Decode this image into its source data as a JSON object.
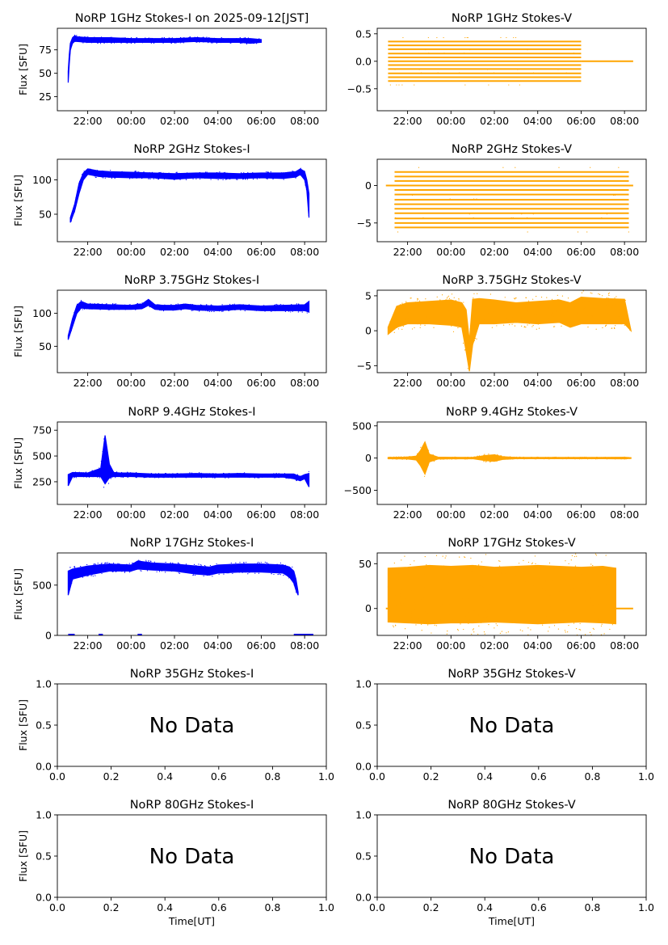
{
  "figure": {
    "x_axis_label": "Time[UT]",
    "y_axis_label": "Flux [SFU]",
    "no_data_text": "No Data",
    "colors": {
      "stokes_i": "#0000ff",
      "stokes_v": "#ffa500"
    }
  },
  "chart_data": [
    {
      "id": "p1i",
      "type": "scatter",
      "title": "NoRP 1GHz Stokes-I on 2025-09-12[JST]",
      "xlabel": "",
      "ylabel": "Flux [SFU]",
      "x_unit": "hours after 00:00 UT on the day of the observation start",
      "xlim": [
        -3.4,
        9.0
      ],
      "ylim": [
        10,
        98
      ],
      "yticks": [
        25,
        50,
        75
      ],
      "xticks": [
        -2,
        0,
        2,
        4,
        6,
        8
      ],
      "xtick_labels": [
        "22:00",
        "00:00",
        "02:00",
        "04:00",
        "06:00",
        "08:00"
      ],
      "series": [
        {
          "mode": "band",
          "x": [
            -2.9,
            -2.85,
            -2.8,
            -2.7,
            -2.6,
            -2.5,
            -2.0,
            -1.0,
            0.0,
            1.0,
            2.0,
            3.0,
            4.0,
            5.0,
            5.5,
            6.0
          ],
          "lo": [
            40,
            60,
            75,
            82,
            84,
            84,
            83,
            83,
            83,
            83,
            83,
            84,
            83,
            83,
            82,
            83
          ],
          "hi": [
            52,
            70,
            82,
            88,
            90,
            89,
            88,
            88,
            87,
            87,
            87,
            88,
            87,
            87,
            87,
            86
          ]
        }
      ]
    },
    {
      "id": "p1v",
      "type": "scatter",
      "title": "NoRP 1GHz Stokes-V",
      "xlabel": "",
      "ylabel": "",
      "xlim": [
        -3.4,
        9.0
      ],
      "ylim": [
        -0.9,
        0.6
      ],
      "yticks": [
        -0.5,
        0.0,
        0.5
      ],
      "ytick_labels": [
        "−0.5",
        "0.0",
        "0.5"
      ],
      "xticks": [
        -2,
        0,
        2,
        4,
        6,
        8
      ],
      "xtick_labels": [
        "22:00",
        "00:00",
        "02:00",
        "04:00",
        "06:00",
        "08:00"
      ],
      "series": [
        {
          "mode": "levels",
          "x_start": -2.9,
          "x_end": 6.0,
          "levels": [
            -0.36,
            -0.29,
            -0.22,
            -0.14,
            -0.07,
            0.0,
            0.07,
            0.14,
            0.22,
            0.29,
            0.36
          ],
          "tail": {
            "x_start": 6.0,
            "x_end": 8.4,
            "y": 0.0
          }
        }
      ]
    },
    {
      "id": "p2i",
      "type": "scatter",
      "title": "NoRP 2GHz Stokes-I",
      "xlabel": "",
      "ylabel": "Flux [SFU]",
      "xlim": [
        -3.4,
        9.0
      ],
      "ylim": [
        10,
        130
      ],
      "yticks": [
        50,
        100
      ],
      "xticks": [
        -2,
        0,
        2,
        4,
        6,
        8
      ],
      "xtick_labels": [
        "22:00",
        "00:00",
        "02:00",
        "04:00",
        "06:00",
        "08:00"
      ],
      "series": [
        {
          "mode": "band",
          "x": [
            -2.8,
            -2.6,
            -2.4,
            -2.2,
            -2.0,
            -1.5,
            -1.0,
            0.0,
            1.0,
            2.0,
            3.0,
            4.0,
            5.0,
            6.0,
            7.0,
            7.6,
            7.8,
            8.0,
            8.1,
            8.2
          ],
          "lo": [
            38,
            55,
            80,
            100,
            108,
            105,
            104,
            103,
            103,
            101,
            103,
            102,
            102,
            103,
            102,
            104,
            108,
            100,
            85,
            45
          ],
          "hi": [
            45,
            65,
            95,
            110,
            116,
            113,
            112,
            111,
            110,
            109,
            110,
            110,
            109,
            110,
            110,
            112,
            116,
            112,
            100,
            80
          ]
        }
      ]
    },
    {
      "id": "p2v",
      "type": "scatter",
      "title": "NoRP 2GHz Stokes-V",
      "xlabel": "",
      "ylabel": "",
      "xlim": [
        -3.4,
        9.0
      ],
      "ylim": [
        -7.5,
        3.5
      ],
      "yticks": [
        -5,
        0
      ],
      "ytick_labels": [
        "−5",
        "0"
      ],
      "xticks": [
        -2,
        0,
        2,
        4,
        6,
        8
      ],
      "xtick_labels": [
        "22:00",
        "00:00",
        "02:00",
        "04:00",
        "06:00",
        "08:00"
      ],
      "series": [
        {
          "mode": "levels",
          "x_start": -2.6,
          "x_end": 8.2,
          "levels": [
            -5.6,
            -5.0,
            -4.4,
            -3.7,
            -3.1,
            -2.5,
            -1.9,
            -1.2,
            -0.6,
            0.0,
            0.6,
            1.2,
            1.8
          ],
          "tail": {
            "x_start": -3.0,
            "x_end": 8.4,
            "y": 0.0
          }
        }
      ]
    },
    {
      "id": "p3i",
      "type": "scatter",
      "title": "NoRP 3.75GHz Stokes-I",
      "xlabel": "",
      "ylabel": "Flux [SFU]",
      "xlim": [
        -3.4,
        9.0
      ],
      "ylim": [
        10,
        135
      ],
      "yticks": [
        50,
        100
      ],
      "xticks": [
        -2,
        0,
        2,
        4,
        6,
        8
      ],
      "xtick_labels": [
        "22:00",
        "00:00",
        "02:00",
        "04:00",
        "06:00",
        "08:00"
      ],
      "series": [
        {
          "mode": "band",
          "x": [
            -2.9,
            -2.7,
            -2.5,
            -2.3,
            -2.0,
            -1.0,
            0.0,
            0.5,
            0.8,
            1.1,
            1.5,
            2.0,
            2.5,
            3.0,
            4.0,
            5.0,
            6.0,
            7.0,
            8.0,
            8.2
          ],
          "lo": [
            60,
            80,
            100,
            108,
            107,
            106,
            106,
            107,
            112,
            106,
            105,
            105,
            107,
            105,
            104,
            106,
            104,
            104,
            104,
            102
          ],
          "hi": [
            66,
            92,
            112,
            118,
            114,
            113,
            112,
            114,
            121,
            113,
            112,
            112,
            114,
            112,
            111,
            113,
            111,
            112,
            113,
            118
          ]
        }
      ]
    },
    {
      "id": "p3v",
      "type": "scatter",
      "title": "NoRP 3.75GHz Stokes-V",
      "xlabel": "",
      "ylabel": "",
      "xlim": [
        -3.4,
        9.0
      ],
      "ylim": [
        -6,
        5.8
      ],
      "yticks": [
        -5,
        0,
        5
      ],
      "ytick_labels": [
        "−5",
        "0",
        "5"
      ],
      "xticks": [
        -2,
        0,
        2,
        4,
        6,
        8
      ],
      "xtick_labels": [
        "22:00",
        "00:00",
        "02:00",
        "04:00",
        "06:00",
        "08:00"
      ],
      "series": [
        {
          "mode": "band",
          "x": [
            -2.9,
            -2.5,
            -2.0,
            -1.0,
            0.0,
            0.5,
            0.7,
            0.85,
            1.0,
            1.3,
            2.0,
            3.0,
            4.0,
            5.0,
            5.5,
            6.0,
            7.0,
            8.0,
            8.3
          ],
          "lo": [
            -0.5,
            0.5,
            1.0,
            1.0,
            0.8,
            0.5,
            -3.0,
            -5.8,
            -2.0,
            1.0,
            1.0,
            1.2,
            1.0,
            1.2,
            0.5,
            1.0,
            1.0,
            1.0,
            0.0
          ],
          "hi": [
            0.5,
            3.5,
            4.0,
            4.2,
            4.4,
            4.0,
            3.0,
            -1.5,
            4.5,
            4.6,
            4.4,
            4.0,
            4.2,
            4.4,
            4.0,
            4.8,
            4.6,
            4.5,
            0.0
          ]
        }
      ]
    },
    {
      "id": "p4i",
      "type": "scatter",
      "title": "NoRP 9.4GHz Stokes-I",
      "xlabel": "",
      "ylabel": "Flux [SFU]",
      "xlim": [
        -3.4,
        9.0
      ],
      "ylim": [
        30,
        830
      ],
      "yticks": [
        250,
        500,
        750
      ],
      "xticks": [
        -2,
        0,
        2,
        4,
        6,
        8
      ],
      "xtick_labels": [
        "22:00",
        "00:00",
        "02:00",
        "04:00",
        "06:00",
        "08:00"
      ],
      "series": [
        {
          "mode": "band",
          "x": [
            -2.9,
            -2.7,
            -2.0,
            -1.4,
            -1.2,
            -1.0,
            -0.8,
            -0.5,
            0.0,
            1.0,
            2.0,
            3.0,
            4.0,
            5.0,
            6.0,
            7.0,
            7.5,
            7.8,
            8.0,
            8.2
          ],
          "lo": [
            210,
            300,
            300,
            300,
            230,
            290,
            300,
            300,
            300,
            295,
            295,
            295,
            295,
            295,
            295,
            295,
            280,
            260,
            280,
            200
          ],
          "hi": [
            320,
            340,
            335,
            380,
            700,
            420,
            340,
            335,
            335,
            325,
            325,
            330,
            325,
            330,
            325,
            325,
            325,
            300,
            320,
            330
          ]
        }
      ]
    },
    {
      "id": "p4v",
      "type": "scatter",
      "title": "NoRP 9.4GHz Stokes-V",
      "xlabel": "",
      "ylabel": "",
      "xlim": [
        -3.4,
        9.0
      ],
      "ylim": [
        -720,
        560
      ],
      "yticks": [
        -500,
        0,
        500
      ],
      "ytick_labels": [
        "−500",
        "0",
        "500"
      ],
      "xticks": [
        -2,
        0,
        2,
        4,
        6,
        8
      ],
      "xtick_labels": [
        "22:00",
        "00:00",
        "02:00",
        "04:00",
        "06:00",
        "08:00"
      ],
      "series": [
        {
          "mode": "band",
          "x": [
            -2.9,
            -2.0,
            -1.6,
            -1.4,
            -1.2,
            -1.0,
            -0.6,
            0.0,
            1.0,
            1.6,
            2.0,
            2.4,
            3.0,
            4.0,
            5.0,
            6.0,
            7.0,
            8.0,
            8.3
          ],
          "lo": [
            -10,
            -15,
            -30,
            -120,
            -250,
            -60,
            -15,
            -12,
            -10,
            -40,
            -50,
            -20,
            -10,
            -10,
            -10,
            -10,
            -10,
            -12,
            -5
          ],
          "hi": [
            10,
            15,
            30,
            120,
            250,
            60,
            15,
            12,
            10,
            40,
            50,
            20,
            10,
            10,
            10,
            10,
            10,
            12,
            5
          ]
        }
      ]
    },
    {
      "id": "p5i",
      "type": "scatter",
      "title": "NoRP 17GHz Stokes-I",
      "xlabel": "",
      "ylabel": "Flux [SFU]",
      "xlim": [
        -3.4,
        9.0
      ],
      "ylim": [
        0,
        820
      ],
      "yticks": [
        0,
        500
      ],
      "xticks": [
        -2,
        0,
        2,
        4,
        6,
        8
      ],
      "xtick_labels": [
        "22:00",
        "00:00",
        "02:00",
        "04:00",
        "06:00",
        "08:00"
      ],
      "series": [
        {
          "mode": "band",
          "x": [
            -2.9,
            -2.7,
            -2.0,
            -1.0,
            0.0,
            0.3,
            1.0,
            2.0,
            3.0,
            3.6,
            4.0,
            5.0,
            6.0,
            7.0,
            7.3,
            7.5,
            7.6,
            7.7
          ],
          "lo": [
            400,
            560,
            600,
            640,
            640,
            660,
            650,
            640,
            610,
            600,
            620,
            630,
            630,
            620,
            580,
            520,
            450,
            400
          ],
          "hi": [
            640,
            660,
            690,
            710,
            700,
            740,
            720,
            710,
            690,
            680,
            700,
            710,
            710,
            700,
            680,
            640,
            560,
            430
          ]
        }
      ]
    },
    {
      "id": "p5v",
      "type": "scatter",
      "title": "NoRP 17GHz Stokes-V",
      "xlabel": "",
      "ylabel": "",
      "xlim": [
        -3.4,
        9.0
      ],
      "ylim": [
        -30,
        62
      ],
      "yticks": [
        0,
        50
      ],
      "xticks": [
        -2,
        0,
        2,
        4,
        6,
        8
      ],
      "xtick_labels": [
        "22:00",
        "00:00",
        "02:00",
        "04:00",
        "06:00",
        "08:00"
      ],
      "series": [
        {
          "mode": "band",
          "x": [
            -2.9,
            -2.0,
            -1.0,
            0.0,
            1.0,
            2.0,
            3.0,
            4.0,
            5.0,
            6.0,
            7.0,
            7.6
          ],
          "lo": [
            -15,
            -16,
            -17,
            -16,
            -16,
            -15,
            -16,
            -17,
            -16,
            -15,
            -16,
            -17
          ],
          "hi": [
            45,
            46,
            48,
            47,
            48,
            46,
            47,
            48,
            47,
            46,
            47,
            45
          ]
        }
      ],
      "tail": {
        "x_start": -3.0,
        "x_end": 8.4,
        "y": 0.0
      }
    },
    {
      "id": "p6i",
      "type": "empty",
      "title": "NoRP 35GHz Stokes-I",
      "xlabel": "",
      "ylabel": "Flux [SFU]",
      "xlim": [
        0,
        1
      ],
      "ylim": [
        0,
        1
      ],
      "xticks": [
        0,
        0.2,
        0.4,
        0.6,
        0.8,
        1.0
      ],
      "xtick_labels": [
        "0.0",
        "0.2",
        "0.4",
        "0.6",
        "0.8",
        "1.0"
      ],
      "yticks": [
        0,
        0.5,
        1.0
      ],
      "ytick_labels": [
        "0.0",
        "0.5",
        "1.0"
      ],
      "series": []
    },
    {
      "id": "p6v",
      "type": "empty",
      "title": "NoRP 35GHz Stokes-V",
      "xlabel": "",
      "ylabel": "",
      "xlim": [
        0,
        1
      ],
      "ylim": [
        0,
        1
      ],
      "xticks": [
        0,
        0.2,
        0.4,
        0.6,
        0.8,
        1.0
      ],
      "xtick_labels": [
        "0.0",
        "0.2",
        "0.4",
        "0.6",
        "0.8",
        "1.0"
      ],
      "yticks": [
        0,
        0.5,
        1.0
      ],
      "ytick_labels": [
        "0.0",
        "0.5",
        "1.0"
      ],
      "series": []
    },
    {
      "id": "p7i",
      "type": "empty",
      "title": "NoRP 80GHz Stokes-I",
      "xlabel": "Time[UT]",
      "ylabel": "Flux [SFU]",
      "xlim": [
        0,
        1
      ],
      "ylim": [
        0,
        1
      ],
      "xticks": [
        0,
        0.2,
        0.4,
        0.6,
        0.8,
        1.0
      ],
      "xtick_labels": [
        "0.0",
        "0.2",
        "0.4",
        "0.6",
        "0.8",
        "1.0"
      ],
      "yticks": [
        0,
        0.5,
        1.0
      ],
      "ytick_labels": [
        "0.0",
        "0.5",
        "1.0"
      ],
      "series": []
    },
    {
      "id": "p7v",
      "type": "empty",
      "title": "NoRP 80GHz Stokes-V",
      "xlabel": "Time[UT]",
      "ylabel": "",
      "xlim": [
        0,
        1
      ],
      "ylim": [
        0,
        1
      ],
      "xticks": [
        0,
        0.2,
        0.4,
        0.6,
        0.8,
        1.0
      ],
      "xtick_labels": [
        "0.0",
        "0.2",
        "0.4",
        "0.6",
        "0.8",
        "1.0"
      ],
      "yticks": [
        0,
        0.5,
        1.0
      ],
      "ytick_labels": [
        "0.0",
        "0.5",
        "1.0"
      ],
      "series": []
    }
  ]
}
